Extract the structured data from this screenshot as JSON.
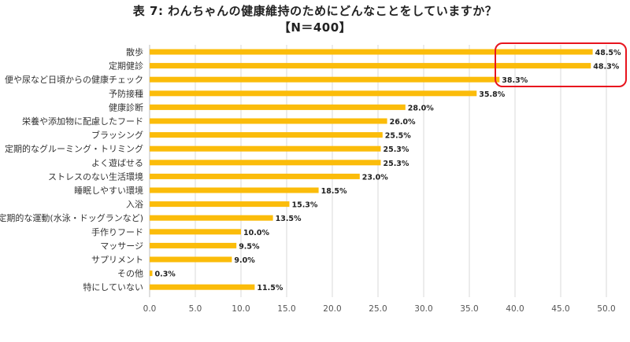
{
  "title": "表 7: わんちゃんの健康維持のためにどんなことをしていますか？",
  "subtitle": "【N＝400】",
  "colors": {
    "bar": "#FBBC0A",
    "grid": "#d9d9d9",
    "highlight": "#e8141e"
  },
  "chart_data": {
    "type": "bar",
    "orientation": "horizontal",
    "categories": [
      "散歩",
      "定期健診",
      "便や尿など日頃からの健康チェック",
      "予防接種",
      "健康診断",
      "栄養や添加物に配慮したフード",
      "ブラッシング",
      "定期的なグルーミング・トリミング",
      "よく遊ばせる",
      "ストレスのない生活環境",
      "睡眠しやすい環境",
      "入浴",
      "定期的な運動(水泳・ドッグランなど)",
      "手作りフード",
      "マッサージ",
      "サプリメント",
      "その他",
      "特にしていない"
    ],
    "values": [
      48.5,
      48.3,
      38.3,
      35.8,
      28.0,
      26.0,
      25.5,
      25.3,
      25.3,
      23.0,
      18.5,
      15.3,
      13.5,
      10.0,
      9.5,
      9.0,
      0.3,
      11.5
    ],
    "value_labels": [
      "48.5%",
      "48.3%",
      "38.3%",
      "35.8%",
      "28.0%",
      "26.0%",
      "25.5%",
      "25.3%",
      "25.3%",
      "23.0%",
      "18.5%",
      "15.3%",
      "13.5%",
      "10.0%",
      "9.5%",
      "9.0%",
      "0.3%",
      "11.5%"
    ],
    "xlim": [
      0,
      50
    ],
    "ticks": [
      "0.0",
      "5.0",
      "10.0",
      "15.0",
      "20.0",
      "25.0",
      "30.0",
      "35.0",
      "40.0",
      "45.0",
      "50.0"
    ],
    "grid": true,
    "highlight_top": 3
  }
}
